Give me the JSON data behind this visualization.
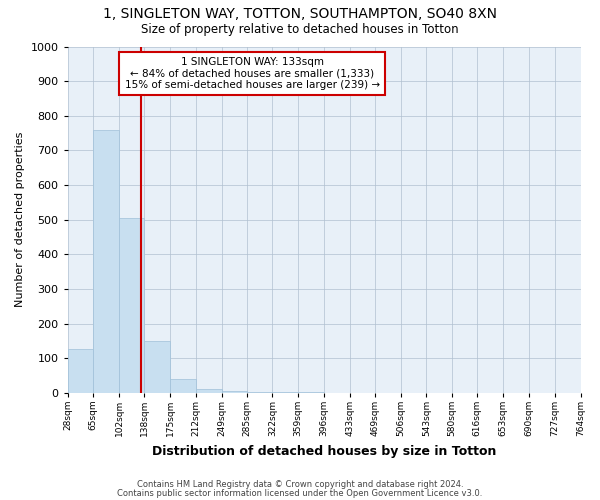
{
  "title": "1, SINGLETON WAY, TOTTON, SOUTHAMPTON, SO40 8XN",
  "subtitle": "Size of property relative to detached houses in Totton",
  "xlabel": "Distribution of detached houses by size in Totton",
  "ylabel": "Number of detached properties",
  "footnote1": "Contains HM Land Registry data © Crown copyright and database right 2024.",
  "footnote2": "Contains public sector information licensed under the Open Government Licence v3.0.",
  "annotation_line1": "1 SINGLETON WAY: 133sqm",
  "annotation_line2": "← 84% of detached houses are smaller (1,333)",
  "annotation_line3": "15% of semi-detached houses are larger (239) →",
  "property_size": 133,
  "bar_color": "#c8dff0",
  "bar_edge_color": "#a0c0d8",
  "redline_color": "#cc0000",
  "background_color": "#ffffff",
  "plot_bg_color": "#e8f0f8",
  "grid_color": "#b0c0d0",
  "bin_edges": [
    28,
    65,
    102,
    138,
    175,
    212,
    249,
    285,
    322,
    359,
    396,
    433,
    469,
    506,
    543,
    580,
    616,
    653,
    690,
    727,
    764
  ],
  "bar_heights": [
    127,
    760,
    505,
    150,
    40,
    10,
    5,
    3,
    2,
    2,
    1,
    1,
    1,
    0,
    0,
    0,
    0,
    0,
    0,
    0
  ],
  "ylim": [
    0,
    1000
  ],
  "yticks": [
    0,
    100,
    200,
    300,
    400,
    500,
    600,
    700,
    800,
    900,
    1000
  ]
}
